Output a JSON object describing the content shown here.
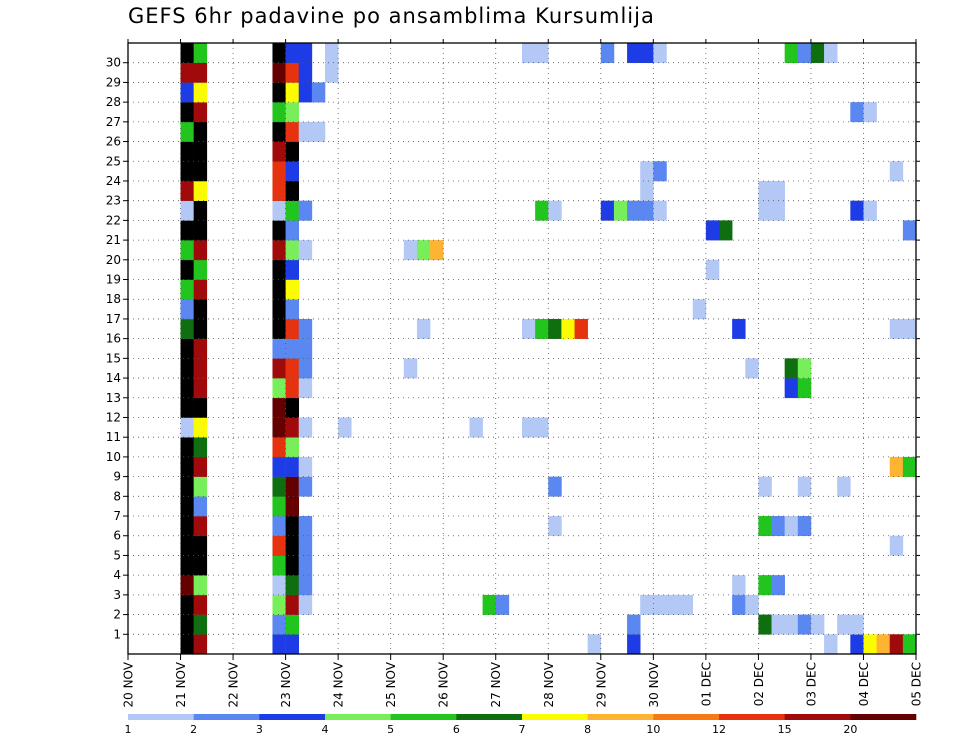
{
  "chart_data": {
    "type": "heatmap",
    "title": "GEFS 6hr padavine po ansamblima Kursumlija",
    "y_ticks": [
      "1",
      "2",
      "3",
      "4",
      "5",
      "6",
      "7",
      "8",
      "9",
      "10",
      "11",
      "12",
      "13",
      "14",
      "15",
      "16",
      "17",
      "18",
      "19",
      "20",
      "21",
      "22",
      "23",
      "24",
      "25",
      "26",
      "27",
      "28",
      "29",
      "30"
    ],
    "x_ticks": [
      "20 NOV",
      "21 NOV",
      "22 NOV",
      "23 NOV",
      "24 NOV",
      "25 NOV",
      "26 NOV",
      "27 NOV",
      "28 NOV",
      "29 NOV",
      "30 NOV",
      "01 DEC",
      "02 DEC",
      "03 DEC",
      "04 DEC",
      "05 DEC"
    ],
    "x_range_steps": [
      0,
      60
    ],
    "y_range": [
      0,
      30
    ],
    "grid": true,
    "legend_position": "bottom",
    "legend": {
      "labels": [
        "1",
        "2",
        "3",
        "4",
        "5",
        "6",
        "7",
        "8",
        "10",
        "12",
        "15",
        "20"
      ],
      "colors": [
        "#b4c8f5",
        "#5a87f0",
        "#1e3ce6",
        "#78ee5a",
        "#22c41e",
        "#0f6e0f",
        "#fcfc00",
        "#fcb432",
        "#fa7814",
        "#e6320f",
        "#a00a0a",
        "#640000"
      ]
    },
    "cells": [
      [
        4,
        0,
        15
      ],
      [
        4,
        1,
        14
      ],
      [
        4,
        2,
        14
      ],
      [
        4,
        3,
        12
      ],
      [
        4,
        4,
        13
      ],
      [
        4,
        5,
        14
      ],
      [
        4,
        6,
        13
      ],
      [
        4,
        7,
        13
      ],
      [
        4,
        8,
        14
      ],
      [
        4,
        9,
        14
      ],
      [
        4,
        10,
        15
      ],
      [
        4,
        11,
        1
      ],
      [
        4,
        12,
        13
      ],
      [
        4,
        13,
        15
      ],
      [
        4,
        14,
        14
      ],
      [
        4,
        15,
        14
      ],
      [
        4,
        16,
        6
      ],
      [
        4,
        17,
        2
      ],
      [
        4,
        18,
        5
      ],
      [
        4,
        19,
        13
      ],
      [
        4,
        20,
        5
      ],
      [
        4,
        21,
        15
      ],
      [
        4,
        22,
        1
      ],
      [
        4,
        23,
        11
      ],
      [
        4,
        24,
        15
      ],
      [
        4,
        25,
        13
      ],
      [
        4,
        26,
        5
      ],
      [
        4,
        27,
        15
      ],
      [
        4,
        28,
        3
      ],
      [
        4,
        29,
        11
      ],
      [
        4,
        30,
        15
      ],
      [
        5,
        0,
        11
      ],
      [
        5,
        1,
        6
      ],
      [
        5,
        2,
        11
      ],
      [
        5,
        3,
        4
      ],
      [
        5,
        4,
        13
      ],
      [
        5,
        5,
        16
      ],
      [
        5,
        6,
        11
      ],
      [
        5,
        7,
        2
      ],
      [
        5,
        8,
        4
      ],
      [
        5,
        9,
        11
      ],
      [
        5,
        10,
        6
      ],
      [
        5,
        11,
        7
      ],
      [
        5,
        12,
        13
      ],
      [
        5,
        13,
        11
      ],
      [
        5,
        14,
        11
      ],
      [
        5,
        15,
        11
      ],
      [
        5,
        16,
        13
      ],
      [
        5,
        17,
        13
      ],
      [
        5,
        18,
        11
      ],
      [
        5,
        19,
        5
      ],
      [
        5,
        20,
        11
      ],
      [
        5,
        21,
        13
      ],
      [
        5,
        22,
        13
      ],
      [
        5,
        23,
        7
      ],
      [
        5,
        24,
        15
      ],
      [
        5,
        25,
        15
      ],
      [
        5,
        26,
        13
      ],
      [
        5,
        27,
        11
      ],
      [
        5,
        28,
        7
      ],
      [
        5,
        29,
        11
      ],
      [
        5,
        30,
        5
      ],
      [
        11,
        0,
        3
      ],
      [
        11,
        1,
        2
      ],
      [
        11,
        2,
        4
      ],
      [
        11,
        3,
        1
      ],
      [
        11,
        4,
        5
      ],
      [
        11,
        5,
        10
      ],
      [
        11,
        6,
        2
      ],
      [
        11,
        7,
        5
      ],
      [
        11,
        8,
        6
      ],
      [
        11,
        9,
        3
      ],
      [
        11,
        10,
        10
      ],
      [
        11,
        11,
        12
      ],
      [
        11,
        12,
        12
      ],
      [
        11,
        13,
        4
      ],
      [
        11,
        14,
        11
      ],
      [
        11,
        15,
        2
      ],
      [
        11,
        16,
        13
      ],
      [
        11,
        17,
        15
      ],
      [
        11,
        18,
        15
      ],
      [
        11,
        19,
        13
      ],
      [
        11,
        20,
        11
      ],
      [
        11,
        21,
        15
      ],
      [
        11,
        22,
        1
      ],
      [
        11,
        23,
        10
      ],
      [
        11,
        24,
        10
      ],
      [
        11,
        25,
        11
      ],
      [
        11,
        26,
        13
      ],
      [
        11,
        27,
        5
      ],
      [
        11,
        28,
        15
      ],
      [
        11,
        29,
        12
      ],
      [
        11,
        30,
        15
      ],
      [
        12,
        0,
        3
      ],
      [
        12,
        1,
        5
      ],
      [
        12,
        2,
        11
      ],
      [
        12,
        3,
        6
      ],
      [
        12,
        4,
        13
      ],
      [
        12,
        5,
        13
      ],
      [
        12,
        6,
        15
      ],
      [
        12,
        7,
        12
      ],
      [
        12,
        8,
        12
      ],
      [
        12,
        9,
        3
      ],
      [
        12,
        10,
        4
      ],
      [
        12,
        11,
        11
      ],
      [
        12,
        12,
        13
      ],
      [
        12,
        13,
        10
      ],
      [
        12,
        14,
        10
      ],
      [
        12,
        15,
        2
      ],
      [
        12,
        16,
        10
      ],
      [
        12,
        17,
        2
      ],
      [
        12,
        18,
        7
      ],
      [
        12,
        19,
        3
      ],
      [
        12,
        20,
        4
      ],
      [
        12,
        21,
        2
      ],
      [
        12,
        22,
        5
      ],
      [
        12,
        23,
        15
      ],
      [
        12,
        24,
        3
      ],
      [
        12,
        25,
        13
      ],
      [
        12,
        26,
        10
      ],
      [
        12,
        27,
        4
      ],
      [
        12,
        28,
        7
      ],
      [
        12,
        29,
        10
      ],
      [
        12,
        30,
        3
      ],
      [
        13,
        2,
        1
      ],
      [
        13,
        3,
        2
      ],
      [
        13,
        4,
        2
      ],
      [
        13,
        5,
        2
      ],
      [
        13,
        6,
        2
      ],
      [
        13,
        8,
        2
      ],
      [
        13,
        9,
        1
      ],
      [
        13,
        11,
        1
      ],
      [
        13,
        13,
        1
      ],
      [
        13,
        14,
        2
      ],
      [
        13,
        15,
        2
      ],
      [
        13,
        16,
        2
      ],
      [
        13,
        20,
        1
      ],
      [
        13,
        22,
        2
      ],
      [
        13,
        26,
        1
      ],
      [
        13,
        28,
        3
      ],
      [
        13,
        29,
        3
      ],
      [
        13,
        30,
        3
      ],
      [
        14,
        26,
        1
      ],
      [
        14,
        28,
        2
      ],
      [
        15,
        29,
        1
      ],
      [
        15,
        30,
        1
      ],
      [
        16,
        11,
        1
      ],
      [
        21,
        14,
        1
      ],
      [
        21,
        20,
        1
      ],
      [
        22,
        16,
        1
      ],
      [
        22,
        20,
        4
      ],
      [
        23,
        20,
        8
      ],
      [
        26,
        11,
        1
      ],
      [
        27,
        2,
        5
      ],
      [
        28,
        2,
        2
      ],
      [
        30,
        11,
        1
      ],
      [
        30,
        16,
        1
      ],
      [
        30,
        30,
        1
      ],
      [
        31,
        11,
        1
      ],
      [
        31,
        16,
        5
      ],
      [
        31,
        22,
        5
      ],
      [
        31,
        30,
        1
      ],
      [
        32,
        6,
        1
      ],
      [
        32,
        8,
        2
      ],
      [
        32,
        16,
        6
      ],
      [
        32,
        22,
        1
      ],
      [
        33,
        16,
        7
      ],
      [
        34,
        16,
        10
      ],
      [
        35,
        0,
        1
      ],
      [
        36,
        22,
        3
      ],
      [
        36,
        30,
        2
      ],
      [
        37,
        22,
        4
      ],
      [
        38,
        0,
        3
      ],
      [
        38,
        1,
        2
      ],
      [
        38,
        22,
        2
      ],
      [
        38,
        30,
        3
      ],
      [
        39,
        2,
        1
      ],
      [
        39,
        22,
        2
      ],
      [
        39,
        23,
        1
      ],
      [
        39,
        24,
        1
      ],
      [
        39,
        30,
        3
      ],
      [
        40,
        2,
        1
      ],
      [
        40,
        22,
        1
      ],
      [
        40,
        24,
        2
      ],
      [
        40,
        30,
        1
      ],
      [
        41,
        2,
        1
      ],
      [
        42,
        2,
        1
      ],
      [
        43,
        17,
        1
      ],
      [
        44,
        19,
        1
      ],
      [
        44,
        21,
        3
      ],
      [
        45,
        21,
        6
      ],
      [
        46,
        2,
        2
      ],
      [
        46,
        3,
        1
      ],
      [
        46,
        16,
        3
      ],
      [
        47,
        2,
        1
      ],
      [
        47,
        14,
        1
      ],
      [
        48,
        1,
        6
      ],
      [
        48,
        3,
        5
      ],
      [
        48,
        6,
        5
      ],
      [
        48,
        8,
        1
      ],
      [
        48,
        22,
        1
      ],
      [
        48,
        23,
        1
      ],
      [
        49,
        1,
        1
      ],
      [
        49,
        3,
        2
      ],
      [
        49,
        6,
        2
      ],
      [
        49,
        22,
        1
      ],
      [
        49,
        23,
        1
      ],
      [
        50,
        1,
        1
      ],
      [
        50,
        6,
        1
      ],
      [
        50,
        13,
        3
      ],
      [
        50,
        14,
        6
      ],
      [
        50,
        30,
        5
      ],
      [
        51,
        1,
        2
      ],
      [
        51,
        6,
        2
      ],
      [
        51,
        8,
        1
      ],
      [
        51,
        13,
        5
      ],
      [
        51,
        14,
        4
      ],
      [
        51,
        30,
        2
      ],
      [
        52,
        1,
        1
      ],
      [
        52,
        30,
        6
      ],
      [
        53,
        0,
        1
      ],
      [
        53,
        30,
        1
      ],
      [
        54,
        1,
        1
      ],
      [
        54,
        8,
        1
      ],
      [
        55,
        0,
        3
      ],
      [
        55,
        1,
        1
      ],
      [
        55,
        22,
        3
      ],
      [
        55,
        27,
        2
      ],
      [
        56,
        0,
        7
      ],
      [
        56,
        22,
        1
      ],
      [
        56,
        27,
        1
      ],
      [
        57,
        0,
        8
      ],
      [
        58,
        0,
        11
      ],
      [
        58,
        5,
        1
      ],
      [
        58,
        9,
        8
      ],
      [
        58,
        16,
        1
      ],
      [
        58,
        24,
        1
      ],
      [
        59,
        0,
        5
      ],
      [
        59,
        9,
        5
      ],
      [
        59,
        16,
        1
      ],
      [
        59,
        21,
        2
      ]
    ]
  }
}
